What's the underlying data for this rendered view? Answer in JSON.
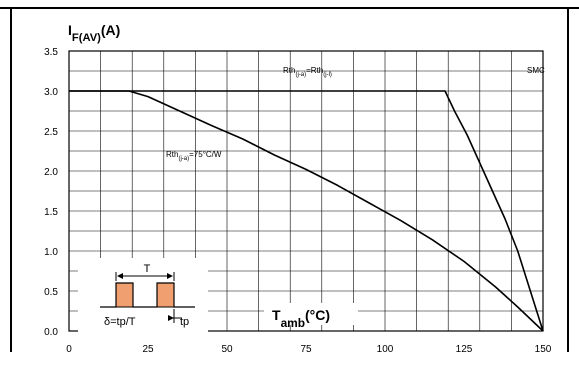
{
  "chart_data": {
    "type": "line",
    "title": "",
    "ylabel": "IF(AV)(A)",
    "xlabel": "Tamb(°C)",
    "xlim": [
      0,
      150
    ],
    "ylim": [
      0,
      3.5
    ],
    "x_ticks": [
      0,
      25,
      50,
      75,
      100,
      125,
      150
    ],
    "y_ticks": [
      0.0,
      0.5,
      1.0,
      1.5,
      2.0,
      2.5,
      3.0,
      3.5
    ],
    "grid": true,
    "series": [
      {
        "name": "Rth(j-a)=Rth(j-l)",
        "label_text": "Rth(j-a)=Rth(j-l)",
        "x": [
          0,
          119,
          122,
          126,
          130,
          134,
          138,
          142,
          146,
          150
        ],
        "y": [
          3.0,
          3.0,
          2.75,
          2.45,
          2.1,
          1.75,
          1.4,
          1.0,
          0.5,
          0.0
        ]
      },
      {
        "name": "Rth(j-a)=75°C/W",
        "label_text": "Rth(j-a)=75°C/W",
        "x": [
          0,
          19,
          25,
          35,
          45,
          55,
          65,
          75,
          85,
          95,
          105,
          115,
          125,
          135,
          142,
          150
        ],
        "y": [
          3.0,
          3.0,
          2.93,
          2.75,
          2.57,
          2.4,
          2.2,
          2.02,
          1.82,
          1.6,
          1.38,
          1.14,
          0.87,
          0.55,
          0.3,
          0.0
        ]
      }
    ],
    "annotations": {
      "smc": "SMC",
      "inset_T": "T",
      "inset_delta": "δ=tp/T",
      "inset_tp": "tp"
    }
  }
}
